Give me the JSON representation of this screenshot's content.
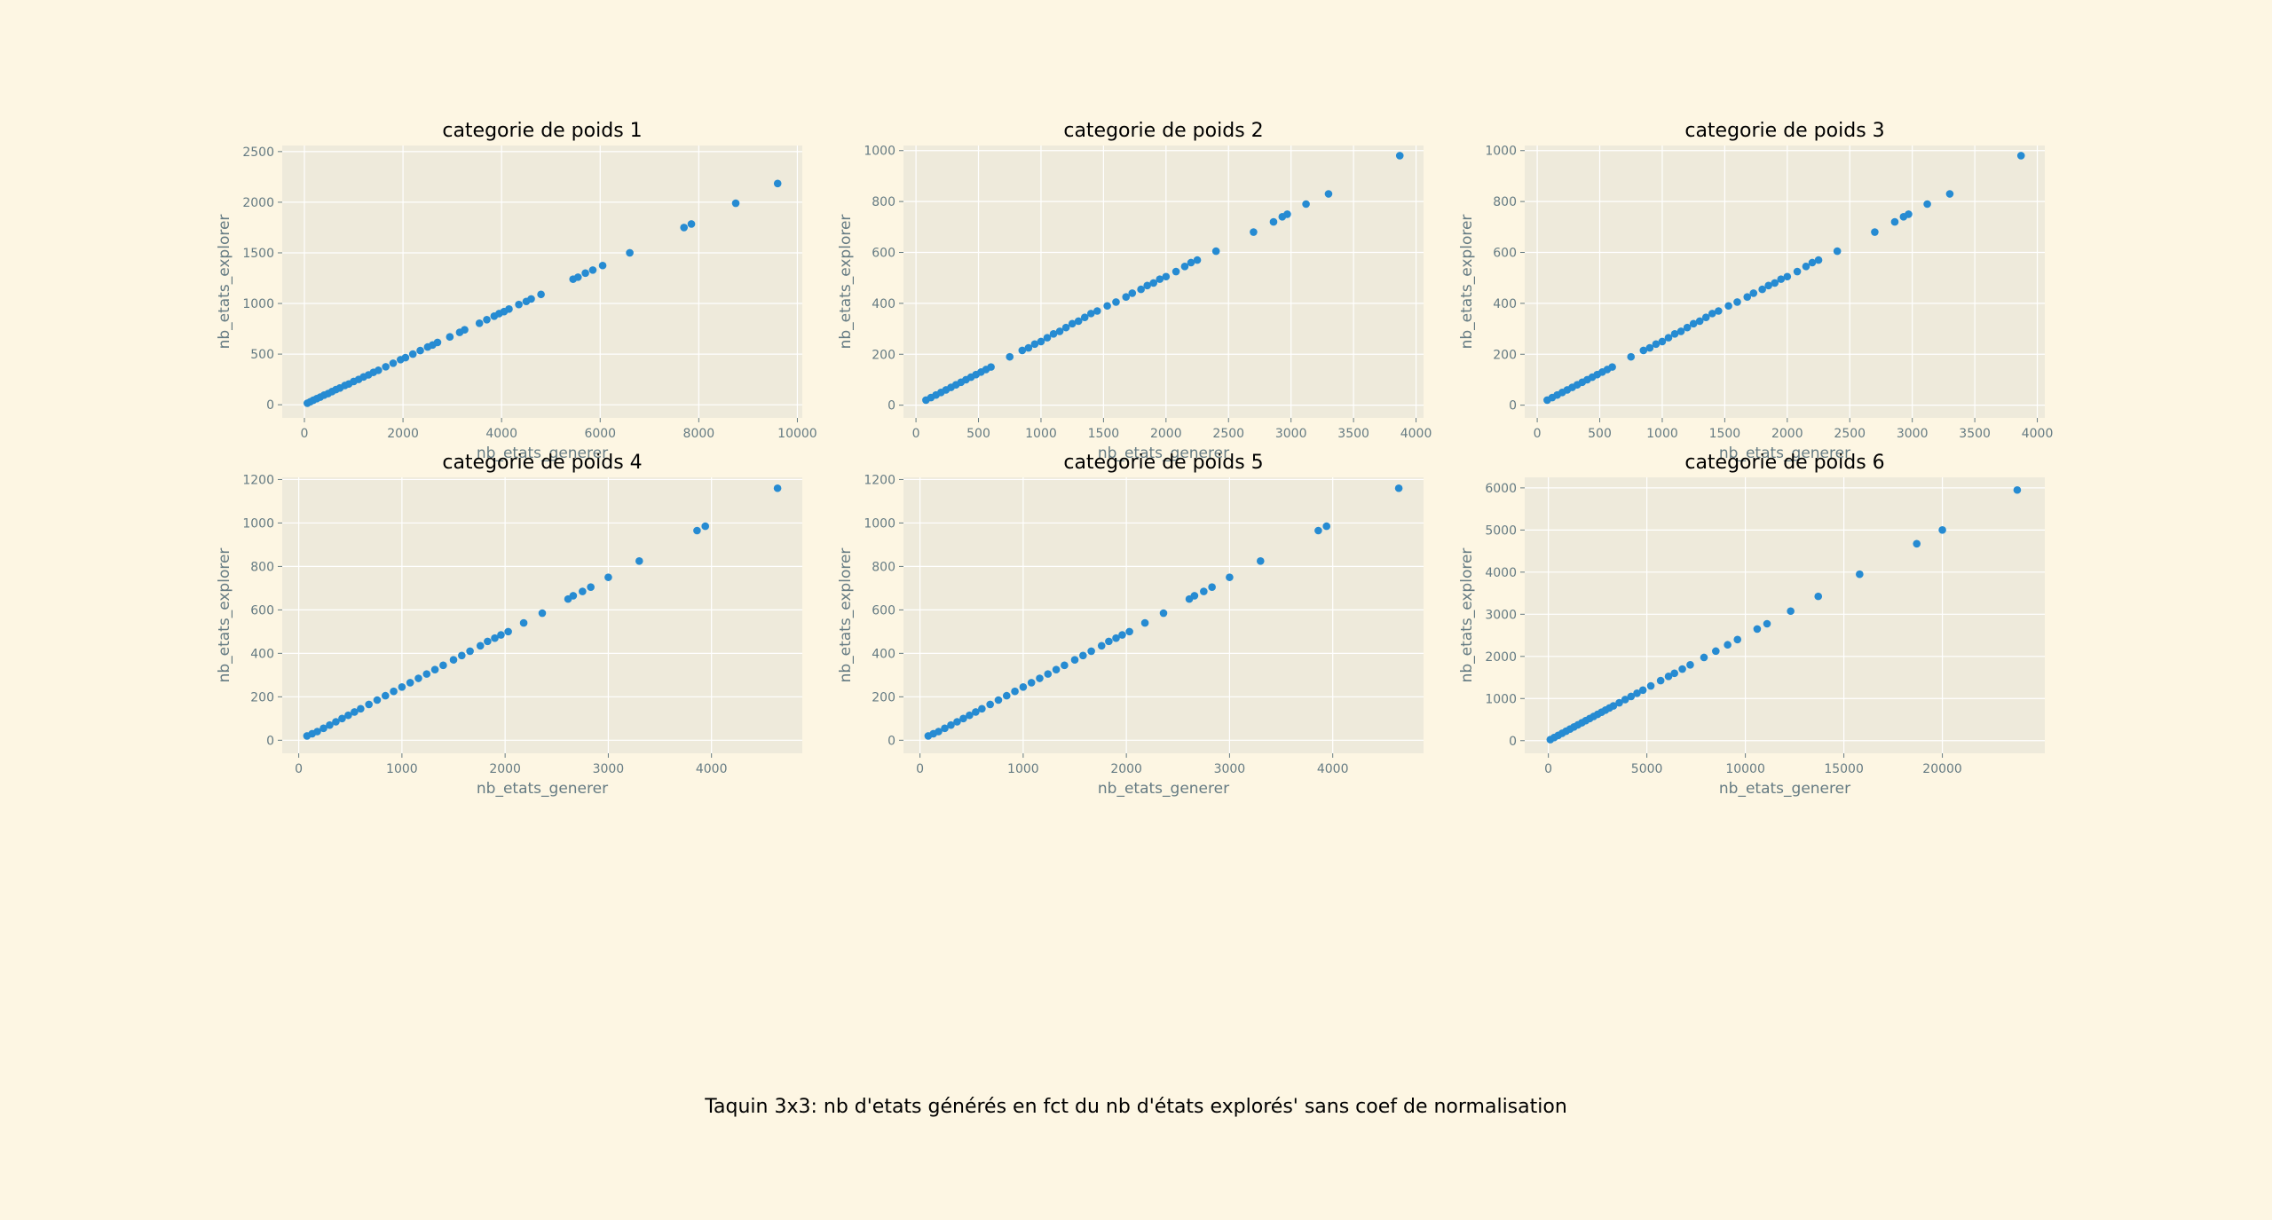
{
  "figure": {
    "caption": "Taquin 3x3: nb d'etats générés en fct du nb d'états explorés' sans coef de normalisation",
    "colors": {
      "background": "#fdf6e3",
      "axes_face": "#eeeadb",
      "grid": "#ffffff",
      "points": "#268bd2",
      "axis_text": "#657b83",
      "title": "#000000"
    }
  },
  "chart_data": [
    {
      "type": "scatter",
      "title": "categorie de poids 1",
      "xlabel": "nb_etats_generer",
      "ylabel": "nb_etats_explorer",
      "xlim": [
        -450,
        10100
      ],
      "ylim": [
        -130,
        2560
      ],
      "xticks": [
        0,
        2000,
        4000,
        6000,
        8000,
        10000
      ],
      "yticks": [
        0,
        500,
        1000,
        1500,
        2000,
        2500
      ],
      "grid": true,
      "series": [
        {
          "x": [
            60,
            120,
            180,
            250,
            320,
            400,
            480,
            560,
            640,
            720,
            820,
            900,
            1000,
            1100,
            1200,
            1300,
            1400,
            1500,
            1650,
            1800,
            1950,
            2050,
            2200,
            2350,
            2500,
            2600,
            2700,
            2950,
            3150,
            3250,
            3550,
            3700,
            3850,
            3950,
            4050,
            4150,
            4350,
            4500,
            4600,
            4800,
            5450,
            5550,
            5700,
            5850,
            6050,
            6600,
            7700,
            7850,
            8750,
            9600
          ],
          "y": [
            15,
            30,
            45,
            60,
            75,
            95,
            110,
            130,
            150,
            165,
            190,
            205,
            230,
            250,
            275,
            295,
            320,
            340,
            375,
            410,
            445,
            465,
            500,
            535,
            570,
            590,
            615,
            670,
            715,
            740,
            805,
            840,
            875,
            900,
            920,
            945,
            990,
            1020,
            1045,
            1090,
            1240,
            1260,
            1300,
            1330,
            1375,
            1500,
            1750,
            1785,
            1990,
            2185
          ]
        }
      ]
    },
    {
      "type": "scatter",
      "title": "categorie de poids 2",
      "xlabel": "nb_etats_generer",
      "ylabel": "nb_etats_explorer",
      "xlim": [
        -100,
        4060
      ],
      "ylim": [
        -50,
        1020
      ],
      "xticks": [
        0,
        500,
        1000,
        1500,
        2000,
        2500,
        3000,
        3500,
        4000
      ],
      "yticks": [
        0,
        200,
        400,
        600,
        800,
        1000
      ],
      "grid": true,
      "series": [
        {
          "x": [
            80,
            120,
            160,
            200,
            240,
            280,
            320,
            360,
            400,
            440,
            480,
            520,
            560,
            600,
            750,
            850,
            900,
            950,
            1000,
            1050,
            1100,
            1150,
            1200,
            1250,
            1300,
            1350,
            1400,
            1450,
            1530,
            1600,
            1680,
            1730,
            1800,
            1850,
            1900,
            1950,
            2000,
            2080,
            2150,
            2200,
            2250,
            2400,
            2700,
            2860,
            2930,
            2970,
            3120,
            3300,
            3870
          ],
          "y": [
            20,
            30,
            40,
            50,
            60,
            70,
            80,
            90,
            100,
            110,
            120,
            130,
            140,
            150,
            190,
            215,
            225,
            240,
            250,
            265,
            280,
            290,
            305,
            320,
            330,
            345,
            360,
            370,
            390,
            405,
            425,
            440,
            455,
            470,
            480,
            495,
            505,
            525,
            545,
            560,
            570,
            605,
            680,
            720,
            740,
            750,
            790,
            830,
            980
          ]
        }
      ]
    },
    {
      "type": "scatter",
      "title": "categorie de poids 3",
      "xlabel": "nb_etats_generer",
      "ylabel": "nb_etats_explorer",
      "xlim": [
        -100,
        4060
      ],
      "ylim": [
        -50,
        1020
      ],
      "xticks": [
        0,
        500,
        1000,
        1500,
        2000,
        2500,
        3000,
        3500,
        4000
      ],
      "yticks": [
        0,
        200,
        400,
        600,
        800,
        1000
      ],
      "grid": true,
      "series": [
        {
          "x": [
            80,
            120,
            160,
            200,
            240,
            280,
            320,
            360,
            400,
            440,
            480,
            520,
            560,
            600,
            750,
            850,
            900,
            950,
            1000,
            1050,
            1100,
            1150,
            1200,
            1250,
            1300,
            1350,
            1400,
            1450,
            1530,
            1600,
            1680,
            1730,
            1800,
            1850,
            1900,
            1950,
            2000,
            2080,
            2150,
            2200,
            2250,
            2400,
            2700,
            2860,
            2930,
            2970,
            3120,
            3300,
            3870
          ],
          "y": [
            20,
            30,
            40,
            50,
            60,
            70,
            80,
            90,
            100,
            110,
            120,
            130,
            140,
            150,
            190,
            215,
            225,
            240,
            250,
            265,
            280,
            290,
            305,
            320,
            330,
            345,
            360,
            370,
            390,
            405,
            425,
            440,
            455,
            470,
            480,
            495,
            505,
            525,
            545,
            560,
            570,
            605,
            680,
            720,
            740,
            750,
            790,
            830,
            980
          ]
        }
      ]
    },
    {
      "type": "scatter",
      "title": "categorie de poids 4",
      "xlabel": "nb_etats_generer",
      "ylabel": "nb_etats_explorer",
      "xlim": [
        -160,
        4880
      ],
      "ylim": [
        -60,
        1210
      ],
      "xticks": [
        0,
        1000,
        2000,
        3000,
        4000
      ],
      "yticks": [
        0,
        200,
        400,
        600,
        800,
        1000,
        1200
      ],
      "grid": true,
      "series": [
        {
          "x": [
            80,
            130,
            180,
            240,
            300,
            360,
            420,
            480,
            540,
            600,
            680,
            760,
            840,
            920,
            1000,
            1080,
            1160,
            1240,
            1320,
            1400,
            1500,
            1580,
            1660,
            1760,
            1830,
            1900,
            1960,
            2030,
            2180,
            2360,
            2610,
            2660,
            2750,
            2830,
            3000,
            3300,
            3860,
            3940,
            4640
          ],
          "y": [
            20,
            30,
            40,
            55,
            70,
            85,
            100,
            115,
            130,
            145,
            165,
            185,
            205,
            225,
            245,
            265,
            285,
            305,
            325,
            345,
            370,
            390,
            410,
            435,
            455,
            470,
            485,
            500,
            540,
            585,
            650,
            665,
            685,
            705,
            750,
            825,
            965,
            985,
            1160
          ]
        }
      ]
    },
    {
      "type": "scatter",
      "title": "categorie de poids 5",
      "xlabel": "nb_etats_generer",
      "ylabel": "nb_etats_explorer",
      "xlim": [
        -160,
        4880
      ],
      "ylim": [
        -60,
        1210
      ],
      "xticks": [
        0,
        1000,
        2000,
        3000,
        4000
      ],
      "yticks": [
        0,
        200,
        400,
        600,
        800,
        1000,
        1200
      ],
      "grid": true,
      "series": [
        {
          "x": [
            80,
            130,
            180,
            240,
            300,
            360,
            420,
            480,
            540,
            600,
            680,
            760,
            840,
            920,
            1000,
            1080,
            1160,
            1240,
            1320,
            1400,
            1500,
            1580,
            1660,
            1760,
            1830,
            1900,
            1960,
            2030,
            2180,
            2360,
            2610,
            2660,
            2750,
            2830,
            3000,
            3300,
            3860,
            3940,
            4640
          ],
          "y": [
            20,
            30,
            40,
            55,
            70,
            85,
            100,
            115,
            130,
            145,
            165,
            185,
            205,
            225,
            245,
            265,
            285,
            305,
            325,
            345,
            370,
            390,
            410,
            435,
            455,
            470,
            485,
            500,
            540,
            585,
            650,
            665,
            685,
            705,
            750,
            825,
            965,
            985,
            1160
          ]
        }
      ]
    },
    {
      "type": "scatter",
      "title": "categorie de poids 6",
      "xlabel": "nb_etats_generer",
      "ylabel": "nb_etats_explorer",
      "xlim": [
        -1200,
        25200
      ],
      "ylim": [
        -300,
        6250
      ],
      "xticks": [
        0,
        5000,
        10000,
        15000,
        20000
      ],
      "yticks": [
        0,
        1000,
        2000,
        3000,
        4000,
        5000,
        6000
      ],
      "grid": true,
      "series": [
        {
          "x": [
            100,
            300,
            500,
            700,
            900,
            1100,
            1300,
            1500,
            1700,
            1900,
            2100,
            2300,
            2500,
            2700,
            2900,
            3100,
            3300,
            3600,
            3900,
            4200,
            4500,
            4800,
            5200,
            5700,
            6100,
            6400,
            6800,
            7200,
            7900,
            8500,
            9100,
            9600,
            10600,
            11100,
            12300,
            13700,
            15800,
            18700,
            20000,
            23800
          ],
          "y": [
            25,
            75,
            125,
            175,
            225,
            275,
            325,
            375,
            425,
            475,
            525,
            575,
            625,
            675,
            725,
            775,
            825,
            900,
            975,
            1050,
            1125,
            1200,
            1300,
            1425,
            1525,
            1600,
            1700,
            1800,
            1975,
            2125,
            2275,
            2400,
            2650,
            2775,
            3075,
            3425,
            3950,
            4675,
            5000,
            5950
          ]
        }
      ]
    }
  ]
}
